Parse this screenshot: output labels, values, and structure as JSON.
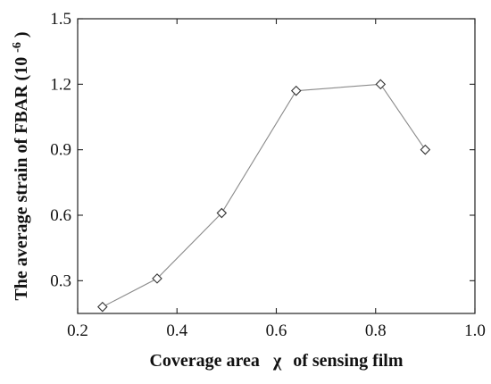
{
  "chart_data": {
    "type": "line",
    "title": "",
    "xlabel_parts": [
      "Coverage area",
      "χ",
      "of sensing film"
    ],
    "ylabel_parts": [
      "The average strain of FBAR (10",
      "-6",
      ")"
    ],
    "xlim": [
      0.2,
      1.0
    ],
    "ylim": [
      0.15,
      1.5
    ],
    "x_ticks": [
      0.2,
      0.4,
      0.6,
      0.8,
      1.0
    ],
    "x_tick_labels": [
      "0.2",
      "0.4",
      "0.6",
      "0.8",
      "1.0"
    ],
    "y_ticks": [
      0.3,
      0.6,
      0.9,
      1.2,
      1.5
    ],
    "y_tick_labels": [
      "0.3",
      "0.6",
      "0.9",
      "1.2",
      "1.5"
    ],
    "grid": false,
    "series": [
      {
        "marker": "diamond",
        "color": "#8a8a8a",
        "x": [
          0.25,
          0.36,
          0.49,
          0.64,
          0.81,
          0.9
        ],
        "y": [
          0.18,
          0.31,
          0.61,
          1.17,
          1.2,
          0.9
        ]
      }
    ]
  }
}
